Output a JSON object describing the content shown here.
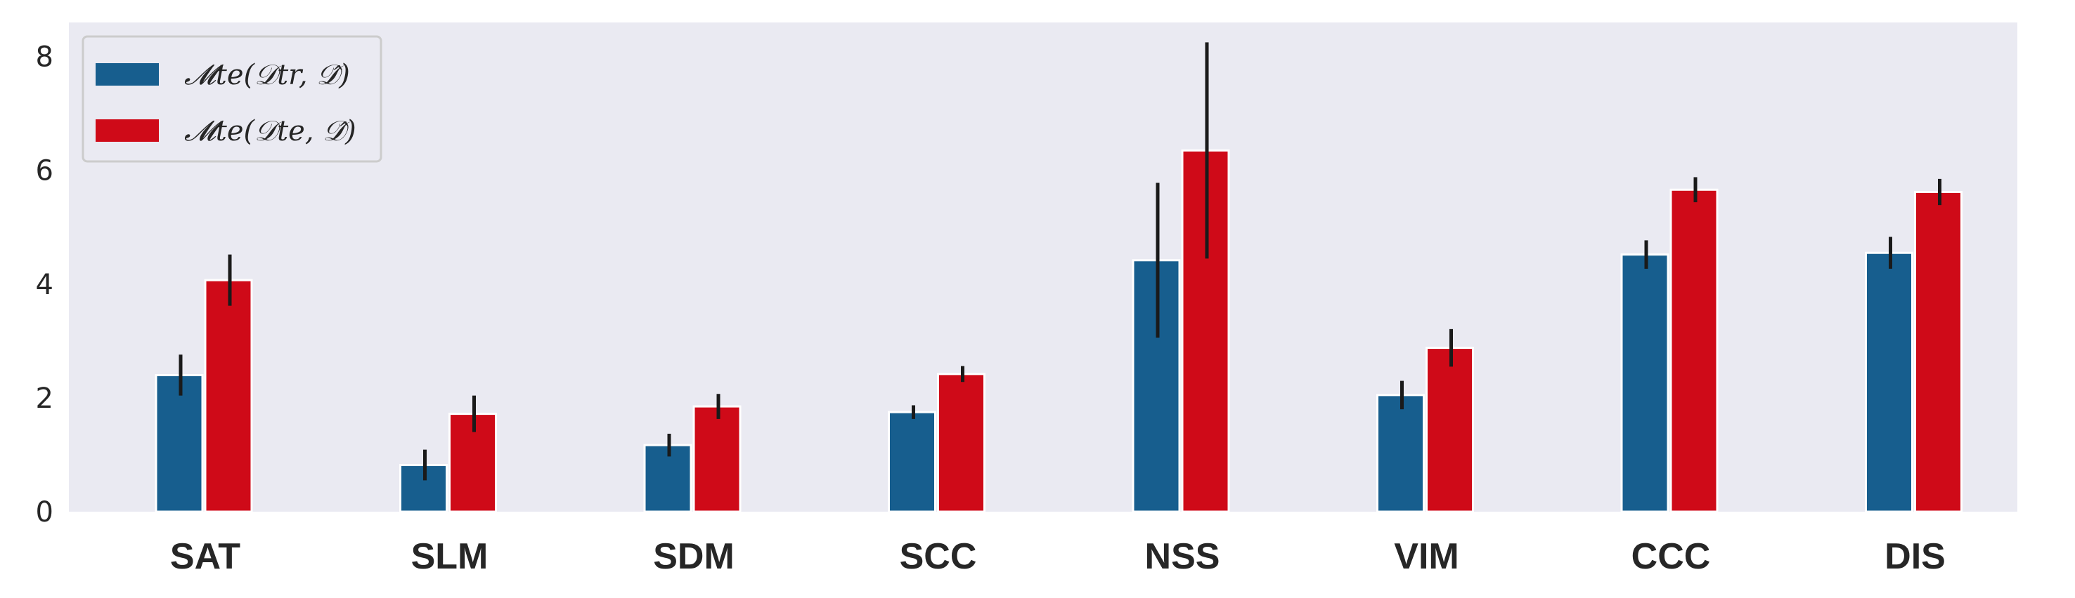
{
  "chart_data": {
    "type": "bar",
    "categories": [
      "SAT",
      "SLM",
      "SDM",
      "SCC",
      "NSS",
      "VIM",
      "CCC",
      "DIS"
    ],
    "series": [
      {
        "name": "𝓜te(𝒟tr, 𝒟̂)",
        "values": [
          2.4,
          0.82,
          1.17,
          1.75,
          4.42,
          2.05,
          4.52,
          4.55
        ],
        "errors": [
          0.36,
          0.27,
          0.2,
          0.12,
          1.36,
          0.25,
          0.25,
          0.28
        ],
        "color": "#175e8e"
      },
      {
        "name": "𝓜te(𝒟te, 𝒟̂)",
        "values": [
          4.07,
          1.72,
          1.85,
          2.42,
          6.35,
          2.88,
          5.66,
          5.62
        ],
        "errors": [
          0.45,
          0.32,
          0.22,
          0.14,
          1.9,
          0.33,
          0.22,
          0.23
        ],
        "color": "#cf0a18"
      }
    ],
    "ylim": [
      0,
      8.6
    ],
    "yticks": [
      0,
      2,
      4,
      6,
      8
    ],
    "grid": false,
    "legend_position": "top-left",
    "title": "",
    "xlabel": "",
    "ylabel": ""
  }
}
